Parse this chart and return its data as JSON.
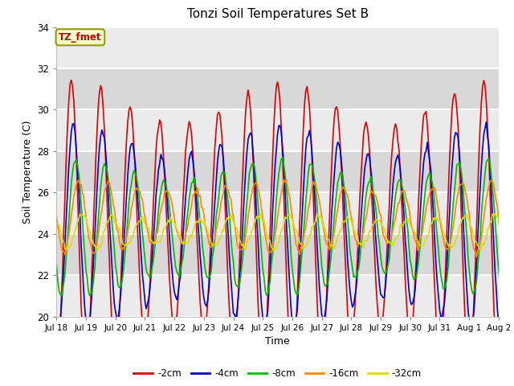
{
  "title": "Tonzi Soil Temperatures Set B",
  "xlabel": "Time",
  "ylabel": "Soil Temperature (C)",
  "ylim": [
    20,
    34
  ],
  "background_color": "#ffffff",
  "plot_bg_color": "#d8d8d8",
  "grid_color": "#ffffff",
  "series_colors": {
    "2": "#dd0000",
    "4": "#0000cc",
    "8": "#00bb00",
    "16": "#ff8800",
    "32": "#dddd00"
  },
  "series_labels": {
    "-2cm": "#dd0000",
    "-4cm": "#0000cc",
    "-8cm": "#00bb00",
    "-16cm": "#ff8800",
    "-32cm": "#dddd00"
  },
  "xtick_labels": [
    "Jul 18",
    "Jul 19",
    "Jul 20",
    "Jul 21",
    "Jul 22",
    "Jul 23",
    "Jul 24",
    "Jul 25",
    "Jul 26",
    "Jul 27",
    "Jul 28",
    "Jul 29",
    "Jul 30",
    "Jul 31",
    "Aug 1",
    "Aug 2"
  ],
  "ytick_vals": [
    20,
    22,
    24,
    26,
    28,
    30,
    32,
    34
  ],
  "annotation_text": "TZ_fmet",
  "annotation_bg": "#ffffcc",
  "annotation_border": "#999900",
  "amp": {
    "2": 6.0,
    "4": 4.2,
    "8": 2.8,
    "16": 1.5,
    "32": 0.7
  },
  "lag_h": {
    "2": 0.0,
    "4": 1.5,
    "8": 3.5,
    "16": 6.0,
    "32": 9.0
  },
  "base": {
    "2": 24.3,
    "4": 24.3,
    "8": 24.3,
    "16": 24.8,
    "32": 24.1
  }
}
